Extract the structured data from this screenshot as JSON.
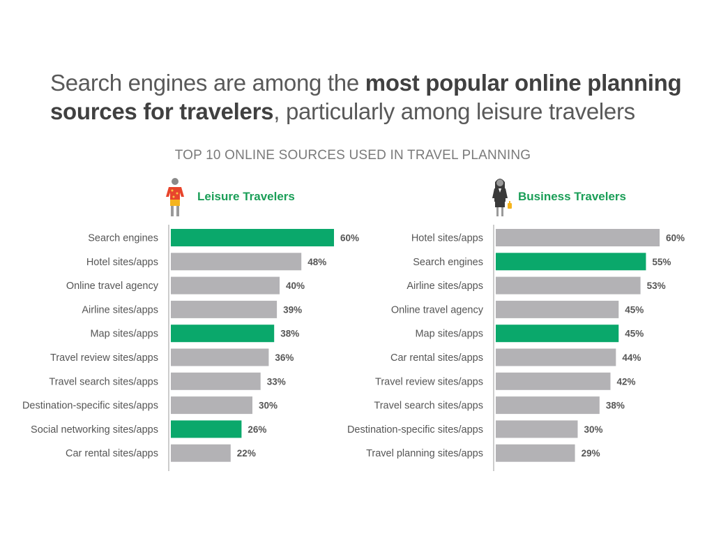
{
  "headline": {
    "part1": "Search engines are among the ",
    "bold": "most popular online planning sources for travelers",
    "part2": ", particularly among leisure travelers"
  },
  "colors": {
    "highlight": "#0aa86b",
    "default": "#b3b2b5",
    "panel_title": "#1a9e57"
  },
  "icons": {
    "leisure": "leisure-traveler-icon",
    "business": "business-traveler-icon"
  },
  "chart_data": [
    {
      "type": "bar",
      "orientation": "horizontal",
      "title": "TOP 10 ONLINE SOURCES USED IN TRAVEL PLANNING",
      "panel": "Leisure Travelers",
      "categories": [
        "Search engines",
        "Hotel sites/apps",
        "Online travel agency",
        "Airline sites/apps",
        "Map sites/apps",
        "Travel review sites/apps",
        "Travel search sites/apps",
        "Destination-specific sites/apps",
        "Social networking sites/apps",
        "Car rental sites/apps"
      ],
      "values": [
        60,
        48,
        40,
        39,
        38,
        36,
        33,
        30,
        26,
        22
      ],
      "labels": [
        "60%",
        "48%",
        "40%",
        "39%",
        "38%",
        "36%",
        "33%",
        "30%",
        "26%",
        "22%"
      ],
      "highlighted": [
        true,
        false,
        false,
        false,
        true,
        false,
        false,
        false,
        true,
        false
      ],
      "xlim": [
        0,
        60
      ]
    },
    {
      "type": "bar",
      "orientation": "horizontal",
      "panel": "Business Travelers",
      "categories": [
        "Hotel sites/apps",
        "Search engines",
        "Airline sites/apps",
        "Online travel agency",
        "Map sites/apps",
        "Car rental sites/apps",
        "Travel review sites/apps",
        "Travel search sites/apps",
        "Destination-specific sites/apps",
        "Travel planning sites/apps"
      ],
      "values": [
        60,
        55,
        53,
        45,
        45,
        44,
        42,
        38,
        30,
        29
      ],
      "labels": [
        "60%",
        "55%",
        "53%",
        "45%",
        "45%",
        "44%",
        "42%",
        "38%",
        "30%",
        "29%"
      ],
      "highlighted": [
        false,
        true,
        false,
        false,
        true,
        false,
        false,
        false,
        false,
        false
      ],
      "xlim": [
        0,
        60
      ]
    }
  ]
}
